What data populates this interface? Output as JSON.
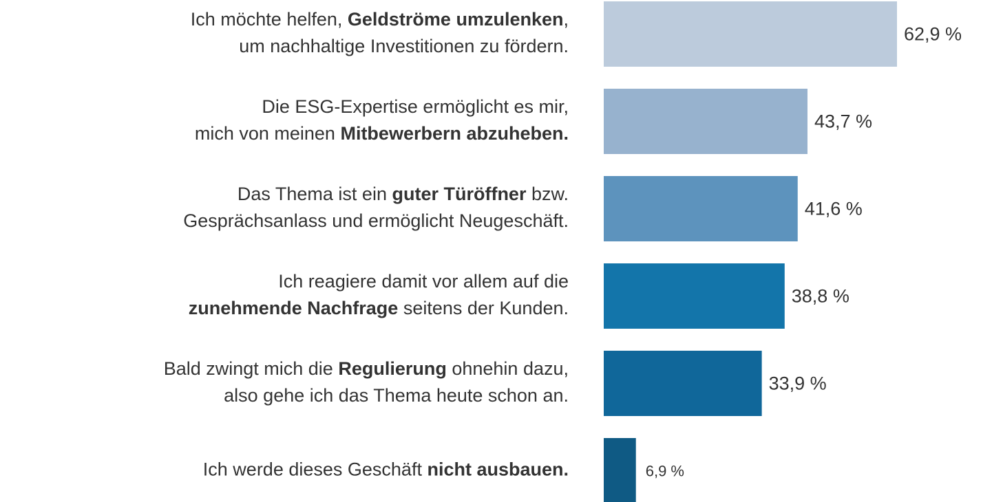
{
  "chart_data": {
    "type": "hbar",
    "categories": [
      [
        [
          {
            "text": "Ich möchte helfen, ",
            "bold": false
          },
          {
            "text": "Geldströme umzulenken",
            "bold": true
          },
          {
            "text": ",",
            "bold": false
          }
        ],
        [
          {
            "text": "um nachhaltige Investitionen zu fördern.",
            "bold": false
          }
        ]
      ],
      [
        [
          {
            "text": "Die ESG-Expertise ermöglicht es mir,",
            "bold": false
          }
        ],
        [
          {
            "text": "mich von meinen ",
            "bold": false
          },
          {
            "text": "Mitbewerbern abzuheben.",
            "bold": true
          }
        ]
      ],
      [
        [
          {
            "text": "Das Thema ist ein ",
            "bold": false
          },
          {
            "text": "guter Türöffner",
            "bold": true
          },
          {
            "text": " bzw.",
            "bold": false
          }
        ],
        [
          {
            "text": "Gesprächsanlass und ermöglicht Neugeschäft.",
            "bold": false
          }
        ]
      ],
      [
        [
          {
            "text": "Ich reagiere damit vor allem auf die",
            "bold": false
          }
        ],
        [
          {
            "text": "zunehmende Nachfrage",
            "bold": true
          },
          {
            "text": " seitens der Kunden.",
            "bold": false
          }
        ]
      ],
      [
        [
          {
            "text": "Bald zwingt mich die ",
            "bold": false
          },
          {
            "text": "Regulierung",
            "bold": true
          },
          {
            "text": " ohnehin dazu,",
            "bold": false
          }
        ],
        [
          {
            "text": "also gehe ich das Thema heute schon an.",
            "bold": false
          }
        ]
      ],
      [
        [
          {
            "text": "Ich werde dieses Geschäft ",
            "bold": false
          },
          {
            "text": "nicht ausbauen.",
            "bold": true
          }
        ]
      ]
    ],
    "values": [
      62.9,
      43.7,
      41.6,
      38.8,
      33.9,
      6.9
    ],
    "value_labels": [
      "62,9 %",
      "43,7 %",
      "41,6 %",
      "38,8 %",
      "33,9 %",
      "6,9 %"
    ],
    "colors": [
      "#bccbdc",
      "#97b2ce",
      "#5d93bd",
      "#1375aa",
      "#10679a",
      "#0f5a84"
    ]
  }
}
